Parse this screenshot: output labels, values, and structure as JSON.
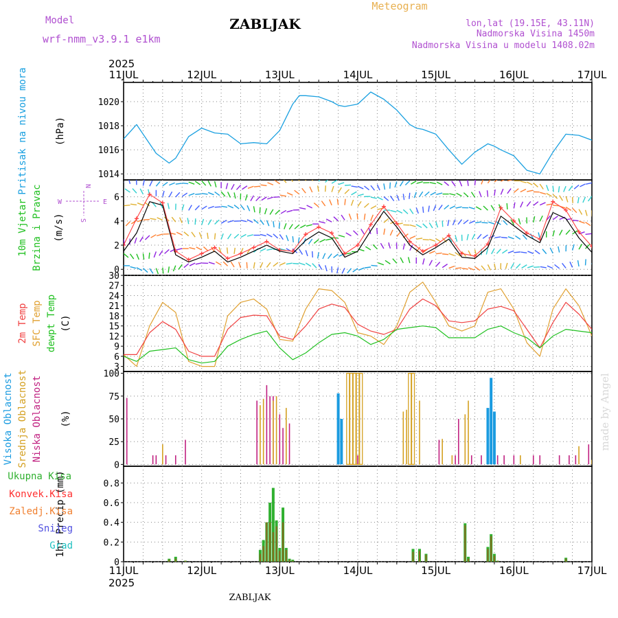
{
  "header": {
    "title": "ZABLJAK",
    "chart_title": "Meteogram",
    "model_label": "Model",
    "model_name": "wrf-nmm_v3.9.1  e1km",
    "coords": "lon,lat (19.15E, 43.11N)",
    "altitude": "Nadmorska Visina 1450m",
    "model_altitude": "Nadmorska Visina u modelu 1408.02m",
    "year_top": "2025",
    "year_bottom": "2025",
    "footer": "ZABLJAK",
    "watermark": "made by Angel",
    "compass": {
      "n": "N",
      "s": "S",
      "e": "E",
      "w": "W"
    }
  },
  "colors": {
    "pressure": "#1aa0e0",
    "wind_speed": "#000000",
    "wind_gust": "#ff4040",
    "temp_2m": "#f04040",
    "temp_sfc": "#e0a030",
    "dewpoint": "#20c020",
    "cloud_high": "#1a9be0",
    "cloud_mid": "#d4a020",
    "cloud_low": "#c02080",
    "precip_total": "#30b030",
    "precip_conv": "#ff3030",
    "precip_frozen": "#f08030",
    "snow": "#5050e0",
    "hail": "#20c0c0",
    "grid": "#808080"
  },
  "chart_data": [
    {
      "id": "pressure",
      "type": "line",
      "ylabel_lines": [
        "Pritisak na nivou mora",
        "(hPa)"
      ],
      "yticks": [
        "1014",
        "1016",
        "1018",
        "1020"
      ],
      "ylim": [
        1013.5,
        1021.6
      ],
      "x_unit": "hours since 11 JUL 00 UTC",
      "x": [
        0,
        4,
        8,
        10,
        14,
        16,
        20,
        24,
        28,
        32,
        36,
        40,
        44,
        48,
        52,
        54,
        56,
        60,
        64,
        66,
        68,
        72,
        76,
        80,
        84,
        88,
        90,
        92,
        96,
        100,
        104,
        108,
        112,
        114,
        116,
        120,
        124,
        128,
        132,
        136,
        140,
        144
      ],
      "series": [
        {
          "values": [
            1016.9,
            1018.1,
            1016.5,
            1015.7,
            1014.9,
            1015.3,
            1017.1,
            1017.8,
            1017.4,
            1017.3,
            1016.5,
            1016.6,
            1016.5,
            1017.6,
            1019.8,
            1020.5,
            1020.5,
            1020.4,
            1020.0,
            1019.7,
            1019.6,
            1019.8,
            1020.8,
            1020.2,
            1019.3,
            1018.1,
            1017.8,
            1017.7,
            1017.3,
            1016.0,
            1014.8,
            1015.8,
            1016.5,
            1016.3,
            1016.0,
            1015.5,
            1014.3,
            1014.0,
            1015.8,
            1017.3,
            1017.2,
            1016.8
          ]
        }
      ]
    },
    {
      "id": "wind",
      "type": "line",
      "ylabel_lines": [
        "10m Vjetar",
        "Brzina i Pravac",
        "(m/s)"
      ],
      "yticks": [
        "0",
        "2",
        "4",
        "6"
      ],
      "ylim": [
        -0.5,
        7.4
      ],
      "x_unit": "hours since 11 JUL 00 UTC",
      "x": [
        0,
        4,
        8,
        12,
        16,
        20,
        24,
        28,
        32,
        36,
        40,
        44,
        48,
        52,
        56,
        60,
        64,
        68,
        72,
        76,
        80,
        84,
        88,
        92,
        96,
        100,
        104,
        108,
        112,
        116,
        120,
        124,
        128,
        132,
        136,
        140,
        144
      ],
      "series": [
        {
          "name": "speed",
          "values": [
            1.5,
            3.0,
            5.6,
            5.3,
            1.2,
            0.6,
            1.0,
            1.5,
            0.6,
            1.0,
            1.5,
            2.0,
            1.5,
            1.3,
            2.4,
            3.1,
            2.6,
            1.0,
            1.5,
            3.2,
            4.8,
            3.5,
            2.0,
            1.2,
            1.8,
            2.5,
            1.0,
            0.9,
            1.8,
            4.4,
            3.6,
            2.8,
            2.2,
            4.7,
            4.2,
            2.6,
            1.4
          ]
        },
        {
          "name": "gust",
          "values": [
            2.0,
            4.2,
            6.2,
            5.5,
            1.5,
            0.8,
            1.3,
            1.8,
            0.9,
            1.3,
            1.8,
            2.3,
            1.6,
            1.5,
            2.9,
            3.5,
            3.0,
            1.3,
            2.0,
            3.7,
            5.2,
            3.8,
            2.3,
            1.5,
            2.0,
            2.8,
            1.3,
            1.1,
            2.1,
            5.1,
            4.0,
            3.0,
            2.5,
            5.6,
            4.9,
            3.1,
            1.9
          ]
        }
      ]
    },
    {
      "id": "temperature",
      "type": "line",
      "ylabel_lines": [
        "2m Temp",
        "SFC Temp",
        "dewpt Temp",
        "(C)"
      ],
      "yticks": [
        "3",
        "6",
        "9",
        "12",
        "15",
        "18",
        "21",
        "24",
        "27",
        "30"
      ],
      "ylim": [
        1.5,
        30
      ],
      "x_unit": "hours since 11 JUL 00 UTC",
      "x": [
        0,
        4,
        8,
        12,
        16,
        20,
        24,
        28,
        32,
        36,
        40,
        44,
        48,
        52,
        56,
        60,
        64,
        68,
        72,
        76,
        80,
        84,
        88,
        92,
        96,
        100,
        104,
        108,
        112,
        116,
        120,
        124,
        128,
        132,
        136,
        140,
        144
      ],
      "series": [
        {
          "name": "2m",
          "values": [
            6.5,
            6.5,
            13.0,
            16.3,
            14.0,
            7.5,
            6.0,
            6.0,
            14.0,
            17.5,
            18.2,
            18.0,
            12.0,
            11.0,
            15.0,
            20.0,
            21.5,
            20.5,
            15.5,
            13.5,
            12.5,
            14.0,
            20.0,
            23.0,
            21.0,
            16.5,
            16.0,
            16.5,
            20.0,
            20.8,
            19.5,
            14.0,
            8.5,
            16.0,
            22.0,
            18.5,
            14.0
          ]
        },
        {
          "name": "SFC",
          "values": [
            6.5,
            3.0,
            15.0,
            22.0,
            19.0,
            4.5,
            3.0,
            3.0,
            18.0,
            22.0,
            23.0,
            20.0,
            11.0,
            10.5,
            20.0,
            26.0,
            25.5,
            22.0,
            13.0,
            12.0,
            9.5,
            15.0,
            25.0,
            28.0,
            22.0,
            15.0,
            13.5,
            15.0,
            25.0,
            26.0,
            20.0,
            10.0,
            6.0,
            20.0,
            26.0,
            21.0,
            12.0
          ]
        },
        {
          "name": "dewpt",
          "values": [
            6.0,
            4.5,
            7.5,
            8.0,
            8.5,
            5.0,
            4.0,
            4.5,
            9.0,
            11.0,
            12.5,
            13.5,
            8.5,
            5.0,
            7.0,
            10.0,
            12.5,
            13.0,
            12.0,
            9.5,
            11.0,
            14.0,
            14.5,
            15.0,
            14.5,
            11.5,
            11.5,
            11.5,
            14.0,
            15.0,
            13.0,
            11.5,
            8.5,
            12.0,
            14.0,
            13.5,
            13.0
          ]
        }
      ]
    },
    {
      "id": "clouds",
      "type": "bar",
      "ylabel_lines": [
        "Visoka Oblacnost",
        "Srednja Oblacnost",
        "Niska Oblacnost",
        "(%)"
      ],
      "yticks": [
        "0",
        "25",
        "50",
        "75",
        "100"
      ],
      "ylim": [
        -2,
        102
      ],
      "x_unit": "hours since 11 JUL 00 UTC",
      "series": [
        {
          "name": "Niska",
          "x": [
            1,
            9,
            10,
            13,
            16,
            19,
            41,
            44,
            45,
            46,
            48,
            49,
            51,
            72,
            97,
            102,
            103,
            107,
            110,
            115,
            117,
            120,
            126,
            128,
            134,
            137,
            139,
            143
          ],
          "values": [
            73,
            10,
            10,
            10,
            10,
            27,
            70,
            87,
            75,
            75,
            55,
            40,
            45,
            10,
            27,
            10,
            50,
            10,
            10,
            10,
            10,
            10,
            10,
            10,
            10,
            10,
            10,
            22
          ]
        },
        {
          "name": "Srednja",
          "x": [
            12,
            42,
            43,
            46,
            47,
            50,
            69,
            70,
            71,
            72,
            73,
            86,
            87,
            88,
            89,
            91,
            98,
            101,
            105,
            106,
            122,
            140,
            144
          ],
          "values": [
            22,
            65,
            72,
            70,
            75,
            62,
            100,
            100,
            100,
            100,
            100,
            58,
            60,
            100,
            100,
            70,
            28,
            10,
            55,
            70,
            10,
            20,
            5
          ]
        },
        {
          "name": "Visoka",
          "x": [
            66,
            67,
            112,
            113,
            114
          ],
          "values": [
            78,
            50,
            62,
            95,
            58
          ]
        }
      ]
    },
    {
      "id": "precip",
      "type": "bar",
      "ylabel_lines": [
        "1hr Precip (mm)"
      ],
      "yticks": [
        "0",
        "0.2",
        "0.4",
        "0.6",
        "0.8"
      ],
      "ylim": [
        0,
        0.97
      ],
      "x_unit": "hours since 11 JUL 00 UTC",
      "x": [
        14,
        16,
        19,
        42,
        43,
        44,
        45,
        46,
        47,
        48,
        49,
        50,
        51,
        52,
        89,
        91,
        93,
        105,
        106,
        112,
        113,
        114,
        115,
        136
      ],
      "series": [
        {
          "name": "Ukupna Kisa",
          "values": [
            0.03,
            0.05,
            0.01,
            0.12,
            0.22,
            0.4,
            0.6,
            0.75,
            0.42,
            0.14,
            0.55,
            0.14,
            0.03,
            0.02,
            0.13,
            0.13,
            0.08,
            0.39,
            0.05,
            0.15,
            0.28,
            0.08,
            0.01,
            0.04
          ]
        },
        {
          "name": "Konvek.Kisa",
          "values": [
            0.02,
            0.03,
            0.01,
            0.08,
            0.16,
            0.4,
            0.4,
            0.3,
            0.36,
            0.11,
            0.4,
            0.12,
            0.02,
            0.01,
            0.1,
            0.11,
            0.07,
            0.37,
            0.03,
            0.13,
            0.26,
            0.06,
            0.01,
            0.03
          ]
        }
      ],
      "legend": [
        "Ukupna Kisa",
        "Konvek.Kisa",
        "Zaledj.Kisa",
        "Snijeg",
        "Grad"
      ]
    }
  ],
  "time_axis": {
    "x_unit": "hours since 11 JUL 00 UTC",
    "range": [
      0,
      144
    ],
    "major_labels": [
      "11JUL",
      "12JUL",
      "13JUL",
      "14JUL",
      "15JUL",
      "16JUL",
      "17JUL"
    ],
    "major_x": [
      0,
      24,
      48,
      72,
      96,
      120,
      144
    ]
  }
}
